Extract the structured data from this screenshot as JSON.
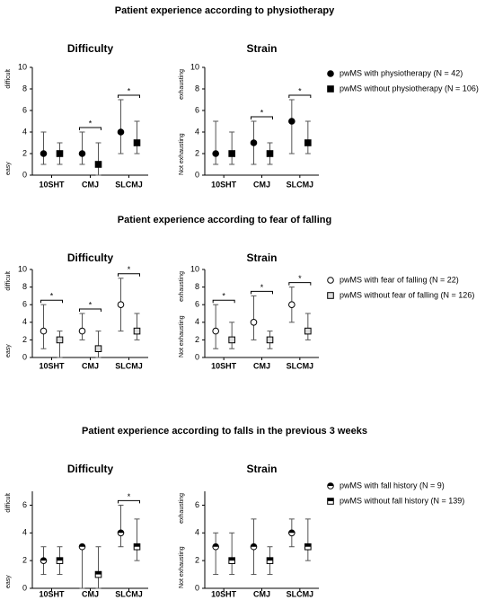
{
  "chart_data": [
    {
      "title": "Patient experience according to physiotherapy",
      "series": [
        {
          "name": "pwMS with physiotherapy  (N = 42)",
          "marker": "circle-filled"
        },
        {
          "name": "pwMS without physiotherapy (N = 106)",
          "marker": "square-filled"
        }
      ],
      "panels": [
        {
          "type": "errorbar",
          "title": "Difficulty",
          "ylabel_top": "difficult",
          "ylabel_bottom": "easy",
          "categories": [
            "10SHT",
            "CMJ",
            "SLCMJ"
          ],
          "ylim": [
            0,
            10
          ],
          "yticks": [
            0,
            2,
            4,
            6,
            8,
            10
          ],
          "data": [
            {
              "values": [
                2,
                2,
                4
              ],
              "lower": [
                1,
                1,
                2
              ],
              "upper": [
                4,
                4,
                7
              ]
            },
            {
              "values": [
                2,
                1,
                3
              ],
              "lower": [
                1,
                0,
                2
              ],
              "upper": [
                3,
                3,
                5
              ]
            }
          ],
          "significance": [
            null,
            "*",
            "*"
          ]
        },
        {
          "type": "errorbar",
          "title": "Strain",
          "ylabel_top": "exhausting",
          "ylabel_bottom": "Not exhausting",
          "categories": [
            "10SHT",
            "CMJ",
            "SLCMJ"
          ],
          "ylim": [
            0,
            10
          ],
          "yticks": [
            0,
            2,
            4,
            6,
            8,
            10
          ],
          "data": [
            {
              "values": [
                2,
                3,
                5
              ],
              "lower": [
                1,
                1,
                2
              ],
              "upper": [
                5,
                5,
                7
              ]
            },
            {
              "values": [
                2,
                2,
                3
              ],
              "lower": [
                1,
                1,
                2
              ],
              "upper": [
                4,
                3,
                5
              ]
            }
          ],
          "significance": [
            null,
            "*",
            "*"
          ]
        }
      ]
    },
    {
      "title": "Patient experience according to fear of falling",
      "series": [
        {
          "name": "pwMS with fear of falling  (N = 22)",
          "marker": "circle-open"
        },
        {
          "name": "pwMS without fear of falling (N = 126)",
          "marker": "square-open"
        }
      ],
      "panels": [
        {
          "type": "errorbar",
          "title": "Difficulty",
          "ylabel_top": "difficult",
          "ylabel_bottom": "easy",
          "categories": [
            "10SHT",
            "CMJ",
            "SLCMJ"
          ],
          "ylim": [
            0,
            10
          ],
          "yticks": [
            0,
            2,
            4,
            6,
            8,
            10
          ],
          "data": [
            {
              "values": [
                3,
                3,
                6
              ],
              "lower": [
                1,
                2,
                3
              ],
              "upper": [
                6,
                5,
                9
              ]
            },
            {
              "values": [
                2,
                1,
                3
              ],
              "lower": [
                0,
                0,
                2
              ],
              "upper": [
                3,
                3,
                5
              ]
            }
          ],
          "significance": [
            "*",
            "*",
            "*"
          ]
        },
        {
          "type": "errorbar",
          "title": "Strain",
          "ylabel_top": "exhausting",
          "ylabel_bottom": "Not exhausting",
          "categories": [
            "10SHT",
            "CMJ",
            "SLCMJ"
          ],
          "ylim": [
            0,
            10
          ],
          "yticks": [
            0,
            2,
            4,
            6,
            8,
            10
          ],
          "data": [
            {
              "values": [
                3,
                4,
                6
              ],
              "lower": [
                1,
                2,
                4
              ],
              "upper": [
                6,
                7,
                8
              ]
            },
            {
              "values": [
                2,
                2,
                3
              ],
              "lower": [
                1,
                1,
                2
              ],
              "upper": [
                4,
                3,
                5
              ]
            }
          ],
          "significance": [
            "*",
            "*",
            "*"
          ]
        }
      ]
    },
    {
      "title": "Patient experience according to falls in the previous 3 weeks",
      "series": [
        {
          "name": "pwMS with fall history  (N = 9)",
          "marker": "circle-half"
        },
        {
          "name": "pwMS without fall history (N = 139)",
          "marker": "square-half"
        }
      ],
      "panels": [
        {
          "type": "errorbar",
          "title": "Difficulty",
          "ylabel_top": "difficult",
          "ylabel_bottom": "easy",
          "categories": [
            "10SHT",
            "CMJ",
            "SLCMJ"
          ],
          "ylim": [
            0,
            7
          ],
          "yticks": [
            0,
            2,
            4,
            6
          ],
          "data": [
            {
              "values": [
                2,
                3,
                4
              ],
              "lower": [
                1,
                0,
                3
              ],
              "upper": [
                3,
                3,
                6
              ]
            },
            {
              "values": [
                2,
                1,
                3
              ],
              "lower": [
                1,
                0,
                2
              ],
              "upper": [
                3,
                3,
                5
              ]
            }
          ],
          "significance": [
            null,
            null,
            "*"
          ]
        },
        {
          "type": "errorbar",
          "title": "Strain",
          "ylabel_top": "exhausting",
          "ylabel_bottom": "Not exhausting",
          "categories": [
            "10SHT",
            "CMJ",
            "SLCMJ"
          ],
          "ylim": [
            0,
            7
          ],
          "yticks": [
            0,
            2,
            4,
            6
          ],
          "data": [
            {
              "values": [
                3,
                3,
                4
              ],
              "lower": [
                1,
                1,
                3
              ],
              "upper": [
                4,
                5,
                5
              ]
            },
            {
              "values": [
                2,
                2,
                3
              ],
              "lower": [
                1,
                1,
                2
              ],
              "upper": [
                4,
                3,
                5
              ]
            }
          ],
          "significance": [
            null,
            null,
            null
          ]
        }
      ]
    }
  ]
}
